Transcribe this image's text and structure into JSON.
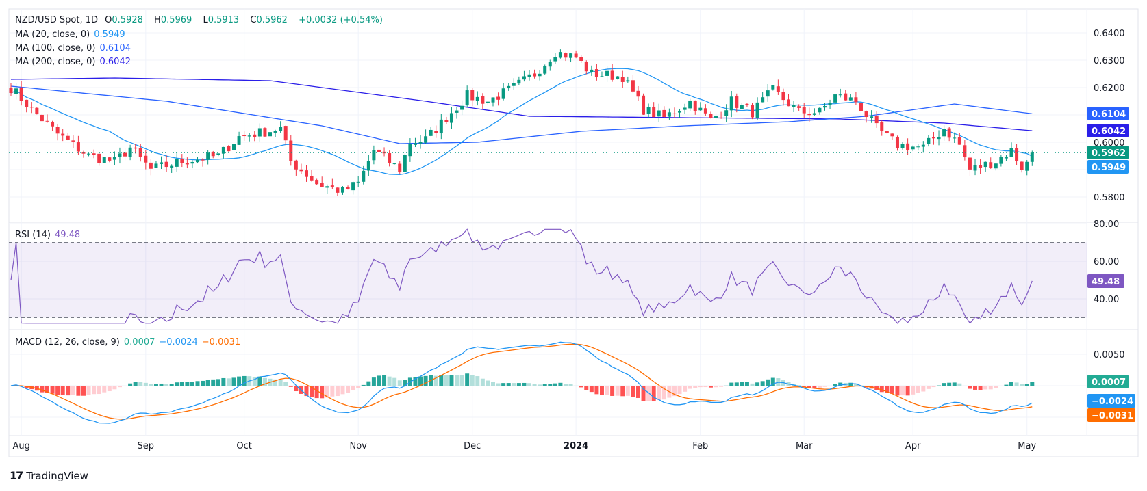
{
  "header": {
    "symbol": "NZD/USD Spot, 1D",
    "open_label": "O",
    "open": "0.5928",
    "high_label": "H",
    "high": "0.5969",
    "low_label": "L",
    "low": "0.5913",
    "close_label": "C",
    "close": "0.5962",
    "change": "+0.0032 (+0.54%)"
  },
  "indicators": {
    "ma20": {
      "label": "MA (20, close, 0)",
      "value": "0.5949",
      "color": "#2196f3"
    },
    "ma100": {
      "label": "MA (100, close, 0)",
      "value": "0.6104",
      "color": "#2962ff"
    },
    "ma200": {
      "label": "MA (200, close, 0)",
      "value": "0.6042",
      "color": "#2a1ee8"
    },
    "rsi": {
      "label": "RSI (14)",
      "value": "49.48",
      "color": "#7e57c2"
    },
    "macd": {
      "label": "MACD (12, 26, close, 9)",
      "hist": "0.0007",
      "macd": "−0.0024",
      "signal": "−0.0031",
      "hist_color": "#22ab94",
      "macd_color": "#2196f3",
      "signal_color": "#ff6d00"
    }
  },
  "axis": {
    "price_ticks": [
      "0.5800",
      "0.6000",
      "0.6200",
      "0.6300",
      "0.6400"
    ],
    "rsi_ticks": [
      "80.00",
      "60.00",
      "40.00"
    ],
    "macd_ticks": [
      "0.0050"
    ],
    "time_labels": [
      {
        "label": "Aug",
        "day": 2
      },
      {
        "label": "Sep",
        "day": 26
      },
      {
        "label": "Oct",
        "day": 45
      },
      {
        "label": "Nov",
        "day": 67
      },
      {
        "label": "Dec",
        "day": 89
      },
      {
        "label": "2024",
        "day": 109,
        "bold": true
      },
      {
        "label": "Feb",
        "day": 133
      },
      {
        "label": "Mar",
        "day": 153
      },
      {
        "label": "Apr",
        "day": 174
      },
      {
        "label": "May",
        "day": 196
      }
    ]
  },
  "badges": {
    "ma100": "0.6104",
    "ma200": "0.6042",
    "close": "0.5962",
    "ma20": "0.5949",
    "rsi": "49.48",
    "hist": "0.0007",
    "macd": "−0.0024",
    "signal": "−0.0031"
  },
  "colors": {
    "up": "#089981",
    "down": "#f23645",
    "grid": "#f0f3fa"
  },
  "chart_data": {
    "type": "candlestick",
    "title": "NZD/USD Spot, 1D",
    "ylim": [
      0.575,
      0.642
    ],
    "close_anchors": [
      [
        0,
        0.62
      ],
      [
        4,
        0.612
      ],
      [
        9,
        0.603
      ],
      [
        15,
        0.595
      ],
      [
        20,
        0.593
      ],
      [
        23,
        0.598
      ],
      [
        27,
        0.59
      ],
      [
        33,
        0.593
      ],
      [
        40,
        0.595
      ],
      [
        44,
        0.602
      ],
      [
        52,
        0.605
      ],
      [
        54,
        0.593
      ],
      [
        59,
        0.585
      ],
      [
        64,
        0.582
      ],
      [
        67,
        0.585
      ],
      [
        70,
        0.597
      ],
      [
        75,
        0.59
      ],
      [
        77,
        0.6
      ],
      [
        80,
        0.601
      ],
      [
        84,
        0.609
      ],
      [
        88,
        0.617
      ],
      [
        92,
        0.615
      ],
      [
        97,
        0.62
      ],
      [
        101,
        0.625
      ],
      [
        105,
        0.633
      ],
      [
        109,
        0.631
      ],
      [
        112,
        0.625
      ],
      [
        118,
        0.624
      ],
      [
        122,
        0.612
      ],
      [
        126,
        0.609
      ],
      [
        131,
        0.615
      ],
      [
        135,
        0.608
      ],
      [
        139,
        0.615
      ],
      [
        143,
        0.611
      ],
      [
        147,
        0.619
      ],
      [
        152,
        0.611
      ],
      [
        156,
        0.611
      ],
      [
        159,
        0.617
      ],
      [
        163,
        0.615
      ],
      [
        167,
        0.605
      ],
      [
        171,
        0.599
      ],
      [
        176,
        0.598
      ],
      [
        180,
        0.605
      ],
      [
        183,
        0.599
      ],
      [
        185,
        0.59
      ],
      [
        190,
        0.593
      ],
      [
        193,
        0.597
      ],
      [
        195,
        0.591
      ],
      [
        196,
        0.5928
      ],
      [
        197,
        0.5962
      ]
    ],
    "last_candle": {
      "open": 0.5928,
      "high": 0.5969,
      "low": 0.5913,
      "close": 0.5962
    },
    "ma100_anchors": [
      [
        0,
        0.6205
      ],
      [
        30,
        0.615
      ],
      [
        60,
        0.606
      ],
      [
        75,
        0.5995
      ],
      [
        90,
        0.6
      ],
      [
        110,
        0.604
      ],
      [
        130,
        0.606
      ],
      [
        150,
        0.6075
      ],
      [
        165,
        0.6095
      ],
      [
        182,
        0.614
      ],
      [
        197,
        0.6104
      ]
    ],
    "ma200_anchors": [
      [
        0,
        0.623
      ],
      [
        20,
        0.6235
      ],
      [
        50,
        0.6225
      ],
      [
        80,
        0.615
      ],
      [
        100,
        0.6095
      ],
      [
        130,
        0.609
      ],
      [
        160,
        0.6085
      ],
      [
        180,
        0.607
      ],
      [
        197,
        0.6042
      ]
    ],
    "rsi_levels": [
      70,
      30
    ],
    "rsi_range": [
      25,
      80
    ]
  }
}
